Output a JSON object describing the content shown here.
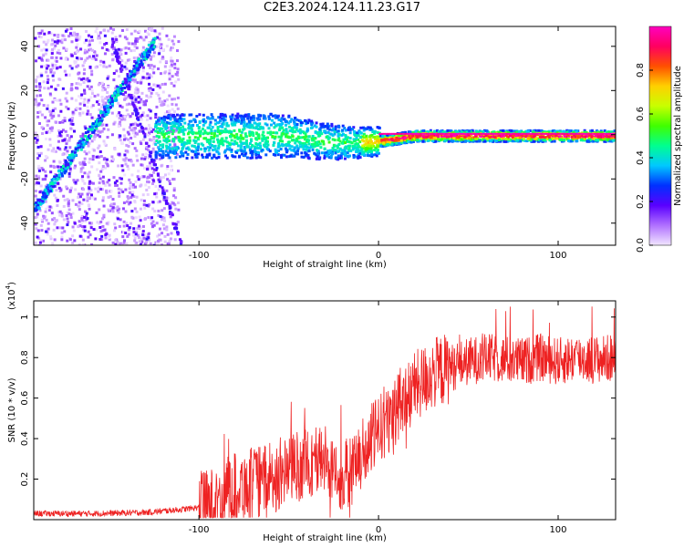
{
  "title": "C2E3.2024.124.11.23.G17",
  "chart_data": [
    {
      "type": "heatmap",
      "xlabel": "Height of straight line (km)",
      "ylabel": "Frequency (Hz)",
      "xlim": [
        -192,
        132
      ],
      "ylim": [
        -50,
        49
      ],
      "x_ticks": [
        -100,
        0,
        100
      ],
      "y_ticks": [
        -40,
        -20,
        0,
        20,
        40
      ],
      "colorbar": {
        "label": "Normalized spectral amplitude",
        "range": [
          0,
          1
        ],
        "ticks": [
          "0.0",
          "0.2",
          "0.4",
          "0.6",
          "0.8"
        ],
        "colors": [
          "#f2e6ff",
          "#b070ff",
          "#5a00ff",
          "#0030ff",
          "#00c8ff",
          "#00ff90",
          "#40ff00",
          "#c8ff00",
          "#ffd000",
          "#ff5000",
          "#ff0060",
          "#ff00c0"
        ]
      },
      "features": [
        {
          "name": "rising tone",
          "x_range": [
            -192,
            -125
          ],
          "freq_start": -33,
          "freq_end": 43
        },
        {
          "name": "carrier band",
          "x_range": [
            -125,
            132
          ],
          "freq_center": 0
        }
      ]
    },
    {
      "type": "line",
      "xlabel": "Height of straight line (km)",
      "ylabel": "SNR (10 * v/v)",
      "y_scale_label": "(x10",
      "y_scale_exp": "4",
      "xlim": [
        -192,
        132
      ],
      "ylim": [
        0,
        1.08
      ],
      "x_ticks": [
        -100,
        0,
        100
      ],
      "y_ticks": [
        0.2,
        0.4,
        0.6,
        0.8,
        1.0
      ],
      "series": [
        {
          "color": "#ee2222",
          "x": [
            -192,
            -160,
            -130,
            -110,
            -100,
            -90,
            -80,
            -70,
            -60,
            -50,
            -40,
            -30,
            -20,
            -10,
            0,
            10,
            20,
            30,
            40,
            50,
            60,
            70,
            80,
            90,
            100,
            110,
            120,
            132
          ],
          "y": [
            0.03,
            0.03,
            0.035,
            0.05,
            0.06,
            0.09,
            0.16,
            0.18,
            0.2,
            0.25,
            0.28,
            0.3,
            0.2,
            0.3,
            0.45,
            0.55,
            0.65,
            0.72,
            0.75,
            0.78,
            0.8,
            0.79,
            0.78,
            0.8,
            0.78,
            0.8,
            0.79,
            0.8
          ]
        }
      ]
    }
  ]
}
